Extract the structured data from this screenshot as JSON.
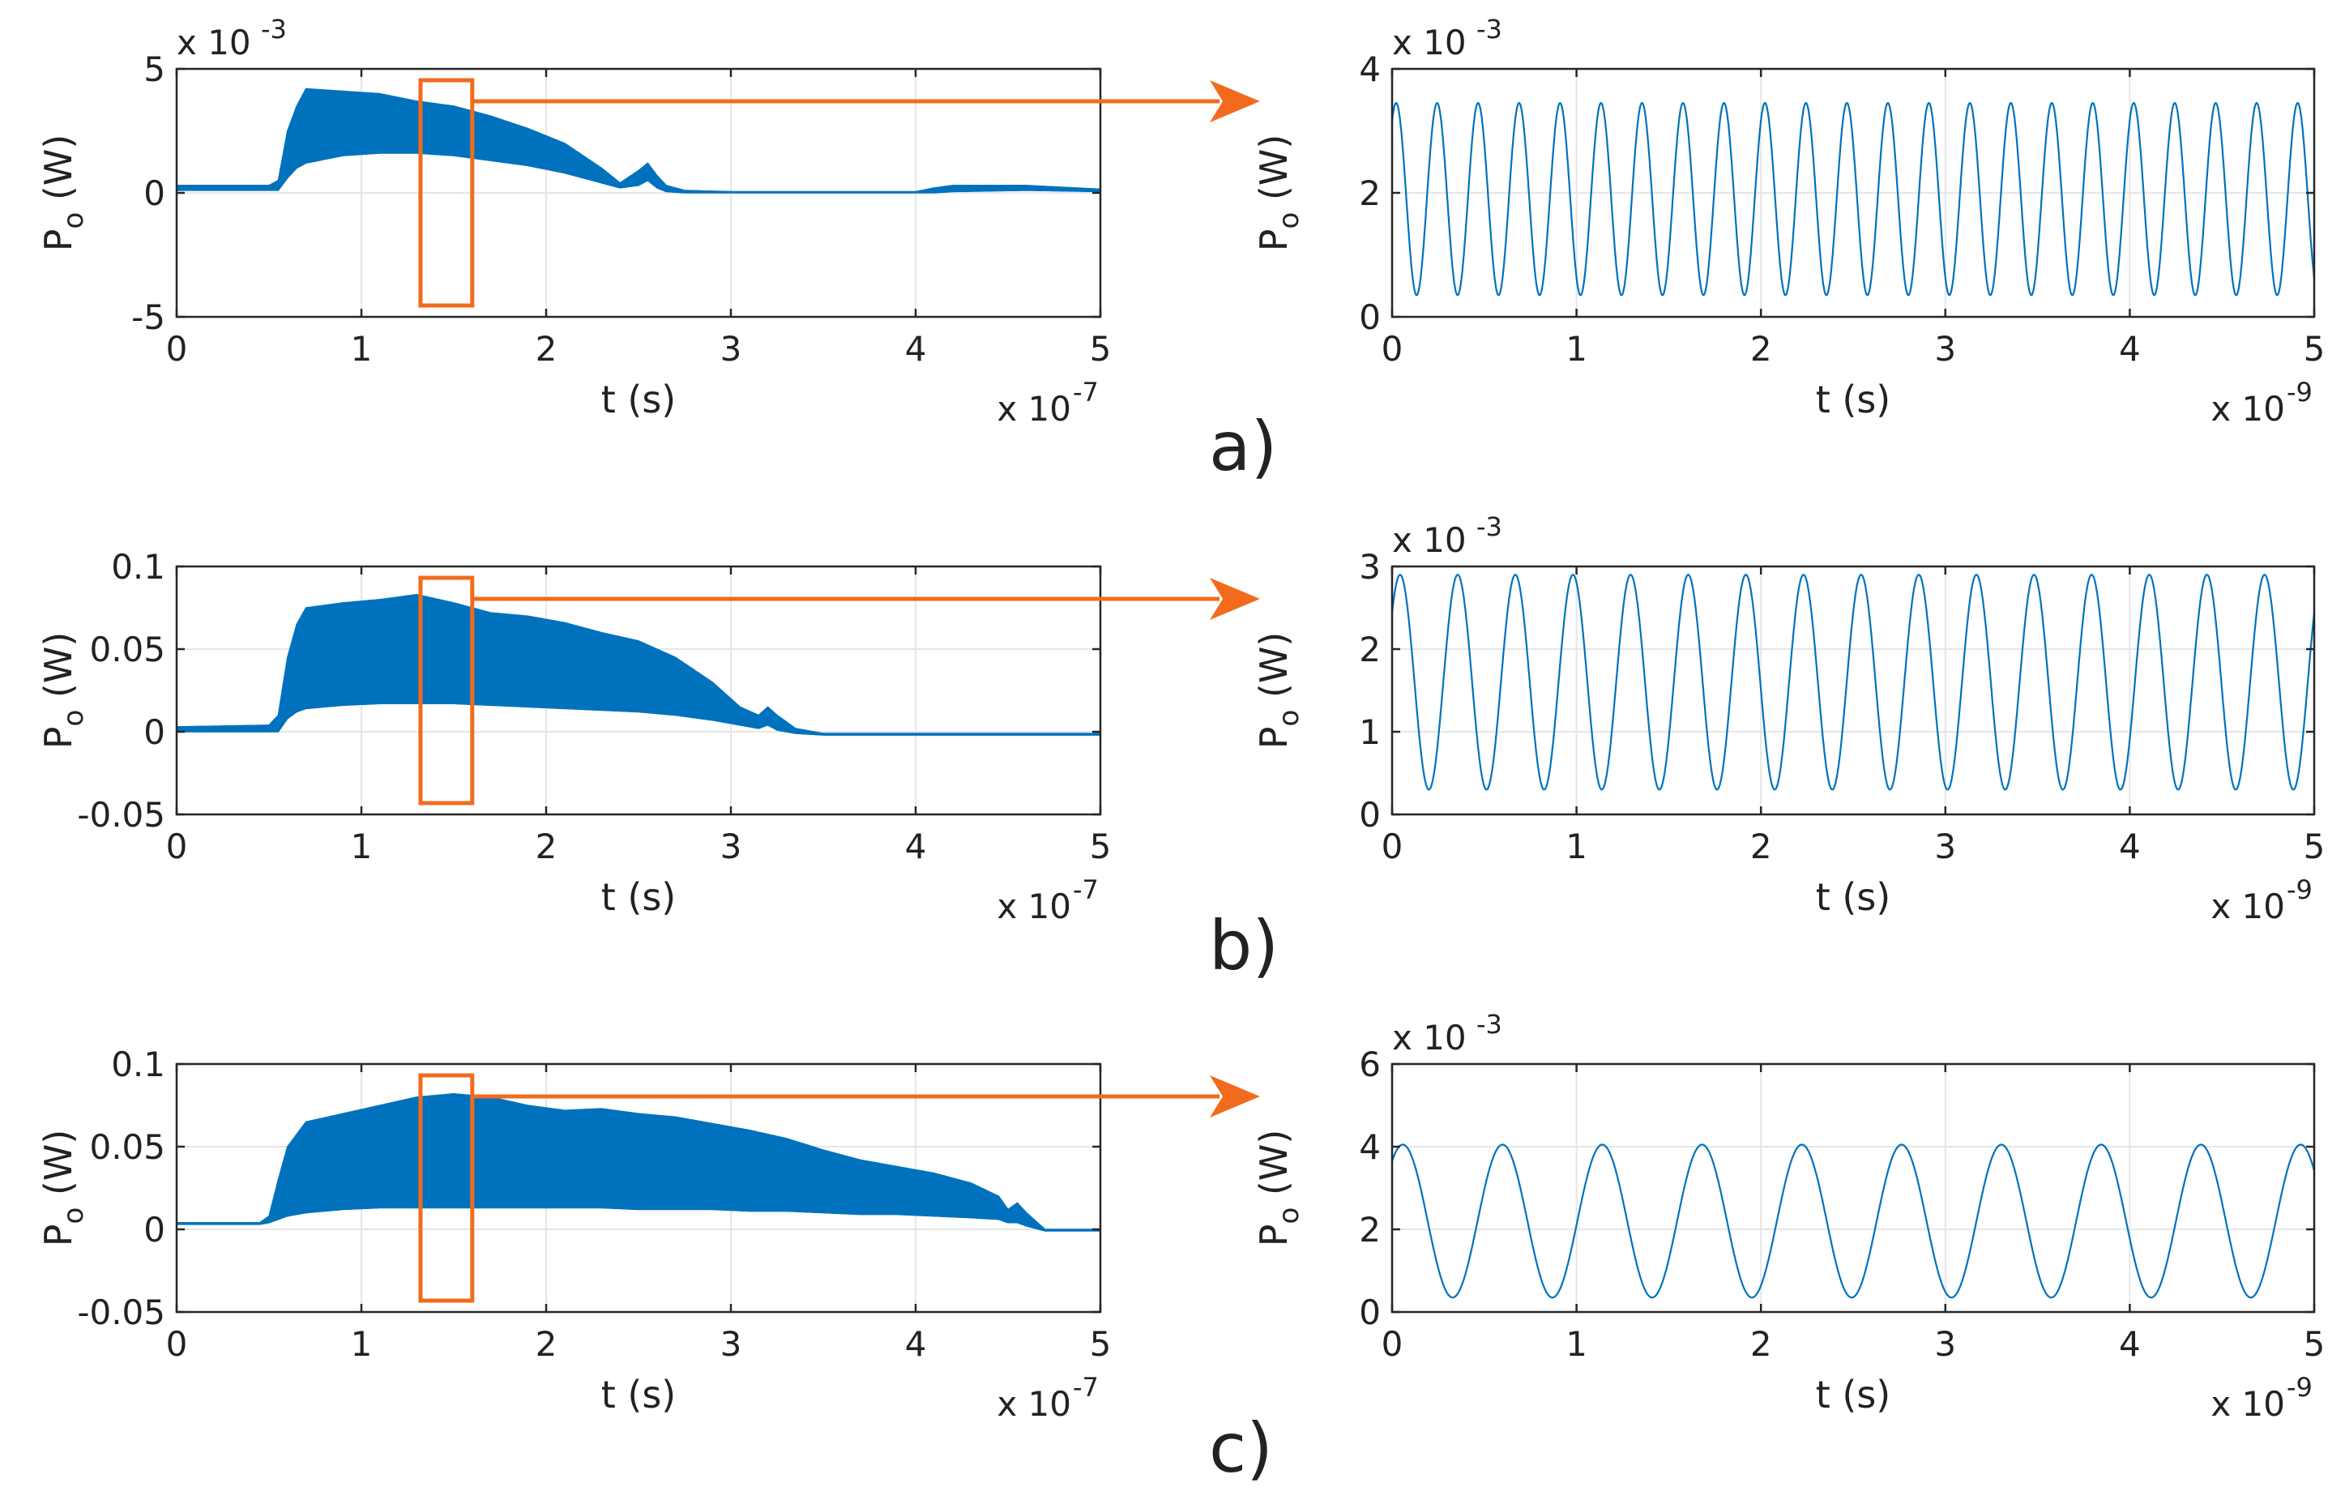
{
  "colors": {
    "series": "#0072BD",
    "callout": "#F26B1D",
    "grid": "#E6E6E6",
    "axis": "#262626"
  },
  "panel_labels": [
    "a)",
    "b)",
    "c)"
  ],
  "chart_data": [
    {
      "id": "a-full",
      "type": "area",
      "xlabel": "t (s)",
      "ylabel_main": "P",
      "ylabel_sub": "o",
      "ylabel_unit": " (W)",
      "x_multiplier_base": "x 10",
      "x_multiplier_exp": "-7",
      "y_multiplier_base": "x 10",
      "y_multiplier_exp": "-3",
      "xlim": [
        0,
        5
      ],
      "ylim": [
        -5,
        5
      ],
      "xticks": [
        0,
        1,
        2,
        3,
        4,
        5
      ],
      "xtick_labels": [
        "0",
        "1",
        "2",
        "3",
        "4",
        "5"
      ],
      "yticks": [
        -5,
        0,
        5
      ],
      "ytick_labels": [
        "-5",
        "0",
        "5"
      ],
      "envelope": {
        "x": [
          0,
          0.5,
          0.55,
          0.6,
          0.65,
          0.7,
          0.9,
          1.1,
          1.3,
          1.5,
          1.7,
          1.9,
          2.1,
          2.3,
          2.4,
          2.5,
          2.55,
          2.6,
          2.65,
          2.75,
          3.0,
          4.0,
          4.1,
          4.2,
          4.6,
          5.0
        ],
        "upper": [
          0.3,
          0.3,
          0.5,
          2.5,
          3.5,
          4.2,
          4.1,
          4.0,
          3.7,
          3.5,
          3.1,
          2.6,
          2.0,
          1.0,
          0.4,
          0.9,
          1.2,
          0.7,
          0.3,
          0.1,
          0.05,
          0.05,
          0.2,
          0.3,
          0.3,
          0.15
        ],
        "lower": [
          0.1,
          0.1,
          0.1,
          0.6,
          1.0,
          1.2,
          1.5,
          1.6,
          1.6,
          1.5,
          1.3,
          1.1,
          0.8,
          0.4,
          0.2,
          0.3,
          0.5,
          0.2,
          0.05,
          0.0,
          0.0,
          0.0,
          0.0,
          0.05,
          0.1,
          0.05
        ]
      },
      "zoom_window": [
        1.32,
        1.6
      ]
    },
    {
      "id": "a-zoom",
      "type": "line",
      "xlabel": "t (s)",
      "ylabel_main": "P",
      "ylabel_sub": "o",
      "ylabel_unit": " (W)",
      "x_multiplier_base": "x 10",
      "x_multiplier_exp": "-9",
      "y_multiplier_base": "x 10",
      "y_multiplier_exp": "-3",
      "xlim": [
        0,
        5
      ],
      "ylim": [
        0,
        4
      ],
      "xticks": [
        0,
        1,
        2,
        3,
        4,
        5
      ],
      "xtick_labels": [
        "0",
        "1",
        "2",
        "3",
        "4",
        "5"
      ],
      "yticks": [
        0,
        2,
        4
      ],
      "ytick_labels": [
        "0",
        "2",
        "4"
      ],
      "sine": {
        "mid": 1.9,
        "amplitude": 1.55,
        "period": 0.2222,
        "phase_start": 0.95,
        "cycles": 22.5
      }
    },
    {
      "id": "b-full",
      "type": "area",
      "xlabel": "t (s)",
      "ylabel_main": "P",
      "ylabel_sub": "o",
      "ylabel_unit": " (W)",
      "x_multiplier_base": "x 10",
      "x_multiplier_exp": "-7",
      "xlim": [
        0,
        5
      ],
      "ylim": [
        -0.05,
        0.1
      ],
      "xticks": [
        0,
        1,
        2,
        3,
        4,
        5
      ],
      "xtick_labels": [
        "0",
        "1",
        "2",
        "3",
        "4",
        "5"
      ],
      "yticks": [
        -0.05,
        0,
        0.05,
        0.1
      ],
      "ytick_labels": [
        "-0.05",
        "0",
        "0.05",
        "0.1"
      ],
      "envelope": {
        "x": [
          0,
          0.5,
          0.55,
          0.6,
          0.65,
          0.7,
          0.9,
          1.1,
          1.3,
          1.5,
          1.7,
          1.9,
          2.1,
          2.3,
          2.5,
          2.7,
          2.9,
          3.05,
          3.15,
          3.2,
          3.25,
          3.35,
          3.5,
          5.0
        ],
        "upper": [
          0.003,
          0.004,
          0.01,
          0.045,
          0.065,
          0.075,
          0.078,
          0.08,
          0.083,
          0.078,
          0.072,
          0.07,
          0.066,
          0.06,
          0.055,
          0.045,
          0.03,
          0.015,
          0.01,
          0.015,
          0.01,
          0.002,
          -0.001,
          -0.001
        ],
        "lower": [
          0.0,
          0.0,
          0.0,
          0.008,
          0.012,
          0.014,
          0.016,
          0.017,
          0.017,
          0.017,
          0.016,
          0.015,
          0.014,
          0.013,
          0.012,
          0.01,
          0.007,
          0.004,
          0.002,
          0.004,
          0.001,
          -0.001,
          -0.002,
          -0.002
        ]
      },
      "zoom_window": [
        1.32,
        1.6
      ]
    },
    {
      "id": "b-zoom",
      "type": "line",
      "xlabel": "t (s)",
      "ylabel_main": "P",
      "ylabel_sub": "o",
      "ylabel_unit": " (W)",
      "x_multiplier_base": "x 10",
      "x_multiplier_exp": "-9",
      "y_multiplier_base": "x 10",
      "y_multiplier_exp": "-3",
      "xlim": [
        0,
        5
      ],
      "ylim": [
        0,
        3
      ],
      "xticks": [
        0,
        1,
        2,
        3,
        4,
        5
      ],
      "xtick_labels": [
        "0",
        "1",
        "2",
        "3",
        "4",
        "5"
      ],
      "yticks": [
        0,
        1,
        2,
        3
      ],
      "ytick_labels": [
        "0",
        "1",
        "2",
        "3"
      ],
      "sine": {
        "mid": 1.6,
        "amplitude": 1.3,
        "period": 0.3125,
        "phase_start": 0.7,
        "cycles": 16.0
      }
    },
    {
      "id": "c-full",
      "type": "area",
      "xlabel": "t (s)",
      "ylabel_main": "P",
      "ylabel_sub": "o",
      "ylabel_unit": " (W)",
      "x_multiplier_base": "x 10",
      "x_multiplier_exp": "-7",
      "xlim": [
        0,
        5
      ],
      "ylim": [
        -0.05,
        0.1
      ],
      "xticks": [
        0,
        1,
        2,
        3,
        4,
        5
      ],
      "xtick_labels": [
        "0",
        "1",
        "2",
        "3",
        "4",
        "5"
      ],
      "yticks": [
        -0.05,
        0,
        0.05,
        0.1
      ],
      "ytick_labels": [
        "-0.05",
        "0",
        "0.05",
        "0.1"
      ],
      "envelope": {
        "x": [
          0,
          0.45,
          0.5,
          0.55,
          0.6,
          0.7,
          0.9,
          1.1,
          1.3,
          1.5,
          1.7,
          1.9,
          2.1,
          2.3,
          2.5,
          2.7,
          2.9,
          3.1,
          3.3,
          3.5,
          3.7,
          3.9,
          4.1,
          4.3,
          4.45,
          4.5,
          4.55,
          4.6,
          4.7,
          5.0
        ],
        "upper": [
          0.004,
          0.004,
          0.008,
          0.03,
          0.05,
          0.065,
          0.07,
          0.075,
          0.08,
          0.082,
          0.08,
          0.075,
          0.072,
          0.073,
          0.07,
          0.068,
          0.064,
          0.06,
          0.055,
          0.048,
          0.042,
          0.038,
          0.034,
          0.028,
          0.02,
          0.012,
          0.016,
          0.01,
          0.0,
          0.0
        ],
        "lower": [
          0.003,
          0.003,
          0.004,
          0.006,
          0.008,
          0.01,
          0.012,
          0.013,
          0.013,
          0.013,
          0.013,
          0.013,
          0.013,
          0.013,
          0.012,
          0.012,
          0.012,
          0.011,
          0.011,
          0.01,
          0.009,
          0.009,
          0.008,
          0.007,
          0.006,
          0.004,
          0.004,
          0.002,
          -0.001,
          -0.001
        ]
      },
      "zoom_window": [
        1.32,
        1.6
      ]
    },
    {
      "id": "c-zoom",
      "type": "line",
      "xlabel": "t (s)",
      "ylabel_main": "P",
      "ylabel_sub": "o",
      "ylabel_unit": " (W)",
      "x_multiplier_base": "x 10",
      "x_multiplier_exp": "-9",
      "y_multiplier_base": "x 10",
      "y_multiplier_exp": "-3",
      "xlim": [
        0,
        5
      ],
      "ylim": [
        0,
        6
      ],
      "xticks": [
        0,
        1,
        2,
        3,
        4,
        5
      ],
      "xtick_labels": [
        "0",
        "1",
        "2",
        "3",
        "4",
        "5"
      ],
      "yticks": [
        0,
        2,
        4,
        6
      ],
      "ytick_labels": [
        "0",
        "2",
        "4",
        "6"
      ],
      "sine": {
        "mid": 2.2,
        "amplitude": 1.85,
        "period": 0.541,
        "phase_start": 0.9,
        "cycles": 9.25
      }
    }
  ]
}
